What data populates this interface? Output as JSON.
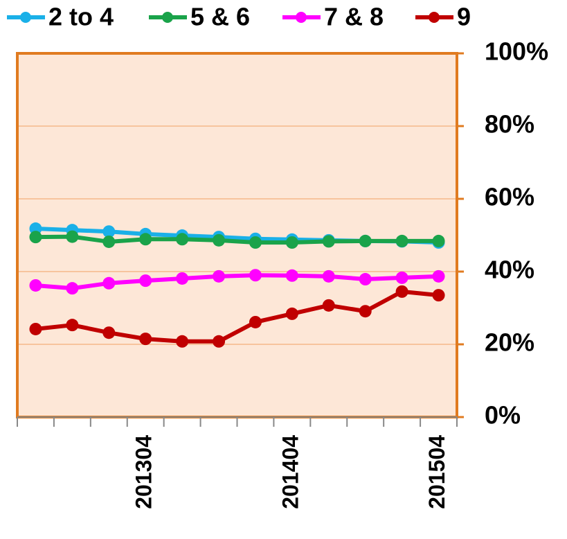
{
  "chart_data": {
    "type": "line",
    "categories": [
      null,
      null,
      null,
      "201304",
      null,
      null,
      null,
      "201404",
      null,
      null,
      null,
      "201504"
    ],
    "series": [
      {
        "name": "2 to 4",
        "color": "#1ab0e8",
        "values": [
          51.8,
          51.4,
          51.0,
          50.3,
          49.9,
          49.5,
          49.0,
          48.8,
          48.6,
          48.4,
          48.3,
          48.0
        ]
      },
      {
        "name": "5 & 6",
        "color": "#1aa34a",
        "values": [
          49.5,
          49.6,
          48.2,
          48.9,
          48.9,
          48.6,
          48.0,
          48.0,
          48.3,
          48.4,
          48.4,
          48.4
        ]
      },
      {
        "name": "7 & 8",
        "color": "#ff00ff",
        "values": [
          36.2,
          35.4,
          36.8,
          37.5,
          38.1,
          38.7,
          39.0,
          38.9,
          38.7,
          37.9,
          38.3,
          38.7
        ]
      },
      {
        "name": "9",
        "color": "#c00000",
        "values": [
          24.2,
          25.3,
          23.2,
          21.5,
          20.8,
          20.8,
          26.1,
          28.4,
          30.7,
          29.1,
          34.5,
          33.5
        ]
      }
    ],
    "ylim": [
      0,
      100
    ],
    "yticks": [
      {
        "value": 0,
        "label": "0%"
      },
      {
        "value": 20,
        "label": "20%"
      },
      {
        "value": 40,
        "label": "40%"
      },
      {
        "value": 60,
        "label": "60%"
      },
      {
        "value": 80,
        "label": "80%"
      },
      {
        "value": 100,
        "label": "100%"
      }
    ],
    "grid": true,
    "legend": "top",
    "plot_background": "#fde7d7",
    "frame_color": "#e07b20"
  }
}
